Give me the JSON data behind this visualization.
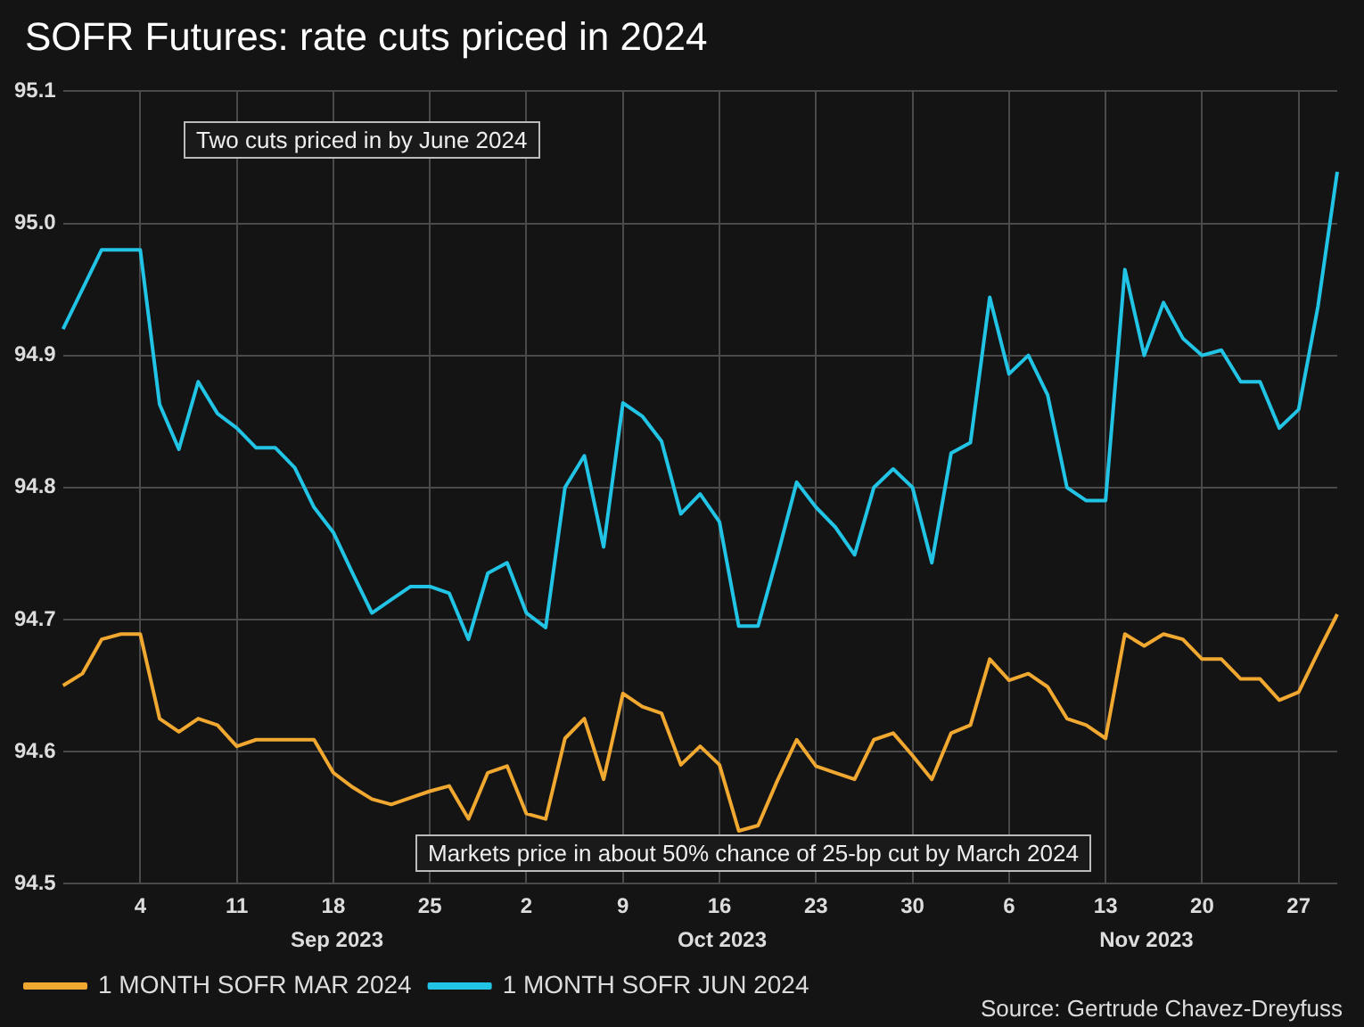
{
  "chart_data": {
    "type": "line",
    "title": "SOFR Futures: rate cuts priced in 2024",
    "categories": [
      null,
      null,
      null,
      null,
      "4",
      null,
      null,
      null,
      null,
      "11",
      null,
      null,
      null,
      null,
      "18",
      null,
      null,
      null,
      null,
      "25",
      null,
      null,
      null,
      null,
      "2",
      null,
      null,
      null,
      null,
      "9",
      null,
      null,
      null,
      null,
      "16",
      null,
      null,
      null,
      null,
      "23",
      null,
      null,
      null,
      null,
      "30",
      null,
      null,
      null,
      null,
      "6",
      null,
      null,
      null,
      null,
      "13",
      null,
      null,
      null,
      null,
      "20",
      null,
      null,
      null,
      null,
      "27",
      null,
      null
    ],
    "series": [
      {
        "name": "1 MONTH SOFR MAR 2024",
        "color": "#f0a830",
        "values": [
          94.65,
          94.659,
          94.685,
          94.689,
          94.689,
          94.625,
          94.615,
          94.625,
          94.62,
          94.604,
          94.609,
          94.609,
          94.609,
          94.609,
          94.584,
          94.573,
          94.564,
          94.56,
          94.565,
          94.57,
          94.574,
          94.549,
          94.584,
          94.589,
          94.553,
          94.549,
          94.61,
          94.625,
          94.579,
          94.644,
          94.634,
          94.629,
          94.59,
          94.604,
          94.59,
          94.54,
          94.544,
          94.578,
          94.609,
          94.589,
          94.584,
          94.579,
          94.609,
          94.614,
          94.597,
          94.579,
          94.614,
          94.62,
          94.67,
          94.654,
          94.659,
          94.649,
          94.625,
          94.62,
          94.61,
          94.689,
          94.68,
          94.689,
          94.685,
          94.67,
          94.67,
          94.655,
          94.655,
          94.639,
          94.645,
          94.675,
          94.704
        ]
      },
      {
        "name": "1 MONTH SOFR JUN 2024",
        "color": "#22c4e6",
        "values": [
          94.92,
          94.95,
          94.98,
          94.98,
          94.98,
          94.863,
          94.829,
          94.88,
          94.856,
          94.845,
          94.83,
          94.83,
          94.815,
          94.785,
          94.766,
          94.735,
          94.705,
          94.715,
          94.725,
          94.725,
          94.72,
          94.685,
          94.735,
          94.743,
          94.705,
          94.694,
          94.8,
          94.824,
          94.755,
          94.864,
          94.854,
          94.835,
          94.78,
          94.795,
          94.774,
          94.695,
          94.695,
          94.748,
          94.804,
          94.785,
          94.77,
          94.749,
          94.8,
          94.814,
          94.8,
          94.743,
          94.826,
          94.834,
          94.944,
          94.886,
          94.9,
          94.87,
          94.8,
          94.79,
          94.79,
          94.965,
          94.9,
          94.94,
          94.913,
          94.9,
          94.904,
          94.88,
          94.88,
          94.845,
          94.859,
          94.937,
          95.039
        ]
      }
    ],
    "ylim": [
      94.5,
      95.1
    ],
    "yticks": [
      94.5,
      94.6,
      94.7,
      94.8,
      94.9,
      {
        "value": 95,
        "label": "95.0"
      },
      95.1
    ],
    "grid": true,
    "legend": "bottom",
    "annotations": [
      "Two cuts priced in by June 2024",
      "Markets price in about 50% chance of 25-bp cut by March 2024",
      "Source: Gertrude Chavez-Dreyfuss",
      "Sep 2023",
      "Oct 2023",
      "Nov 2023"
    ]
  }
}
